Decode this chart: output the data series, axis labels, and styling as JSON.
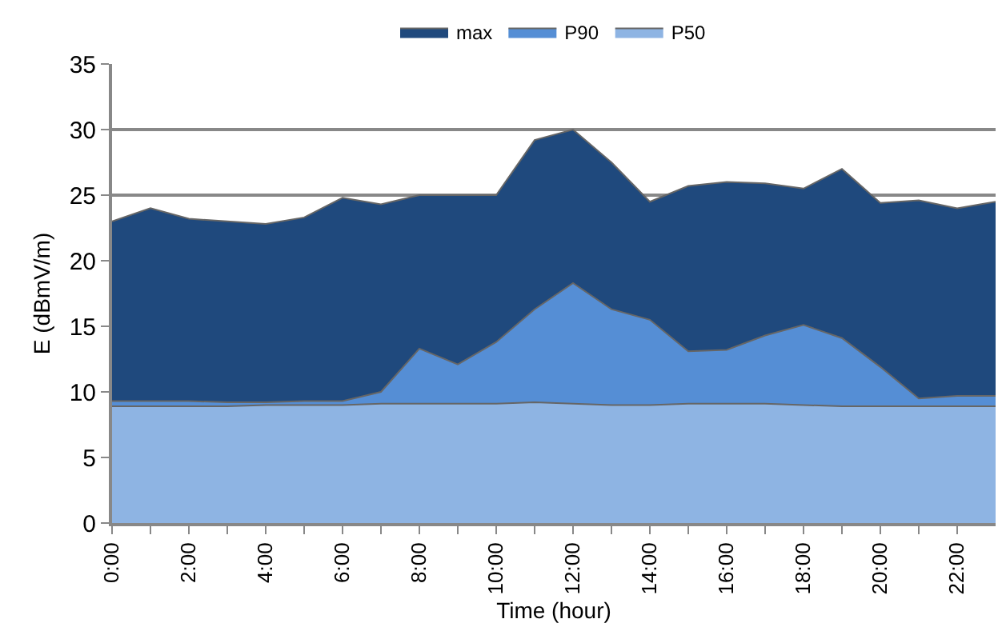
{
  "chart_data": {
    "type": "area",
    "xlabel": "Time (hour)",
    "ylabel": "E (dBmV/m)",
    "x": [
      0,
      1,
      2,
      3,
      4,
      5,
      6,
      7,
      8,
      9,
      10,
      11,
      12,
      13,
      14,
      15,
      16,
      17,
      18,
      19,
      20,
      21,
      22,
      23
    ],
    "series": [
      {
        "name": "max",
        "color": "#1f497d",
        "values": [
          23,
          24,
          23.2,
          23,
          22.8,
          23.3,
          24.8,
          24.3,
          25,
          25,
          25,
          29.2,
          30,
          27.5,
          24.5,
          25.7,
          26,
          25.9,
          25.5,
          27,
          24.4,
          24.6,
          24,
          24.5
        ]
      },
      {
        "name": "P90",
        "color": "#558ed5",
        "values": [
          9.3,
          9.3,
          9.3,
          9.2,
          9.2,
          9.3,
          9.3,
          10,
          13.3,
          12.1,
          13.8,
          16.3,
          18.3,
          16.3,
          15.5,
          13.1,
          13.2,
          14.3,
          15.1,
          14.1,
          11.9,
          9.5,
          9.7,
          9.7
        ]
      },
      {
        "name": "P50",
        "color": "#8eb4e3",
        "values": [
          8.9,
          8.9,
          8.9,
          8.9,
          9,
          9,
          9,
          9.1,
          9.1,
          9.1,
          9.1,
          9.2,
          9.1,
          9,
          9,
          9.1,
          9.1,
          9.1,
          9,
          8.9,
          8.9,
          8.9,
          8.9,
          8.9
        ]
      }
    ],
    "xlim": [
      0,
      23
    ],
    "xticks": [
      {
        "value": 0,
        "label": "0:00"
      },
      {
        "value": 1,
        "label": null
      },
      {
        "value": 2,
        "label": "2:00"
      },
      {
        "value": 3,
        "label": null
      },
      {
        "value": 4,
        "label": "4:00"
      },
      {
        "value": 5,
        "label": null
      },
      {
        "value": 6,
        "label": "6:00"
      },
      {
        "value": 7,
        "label": null
      },
      {
        "value": 8,
        "label": "8:00"
      },
      {
        "value": 9,
        "label": null
      },
      {
        "value": 10,
        "label": "10:00"
      },
      {
        "value": 11,
        "label": null
      },
      {
        "value": 12,
        "label": "12:00"
      },
      {
        "value": 13,
        "label": null
      },
      {
        "value": 14,
        "label": "14:00"
      },
      {
        "value": 15,
        "label": null
      },
      {
        "value": 16,
        "label": "16:00"
      },
      {
        "value": 17,
        "label": null
      },
      {
        "value": 18,
        "label": "18:00"
      },
      {
        "value": 19,
        "label": null
      },
      {
        "value": 20,
        "label": "20:00"
      },
      {
        "value": 21,
        "label": null
      },
      {
        "value": 22,
        "label": "22:00"
      }
    ],
    "ylim": [
      0,
      35
    ],
    "yticks": [
      0,
      5,
      10,
      15,
      20,
      25,
      30,
      35
    ],
    "grid": "y",
    "legend": "top"
  }
}
